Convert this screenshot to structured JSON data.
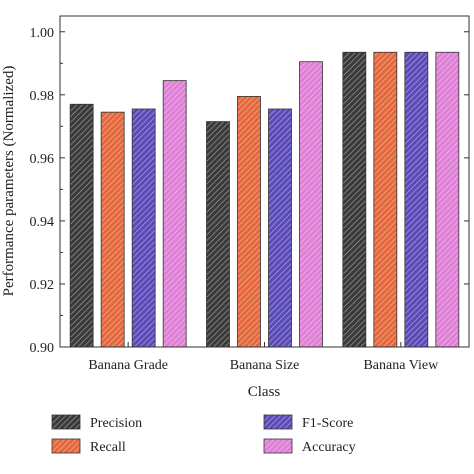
{
  "chart_data": {
    "type": "bar",
    "xlabel": "Class",
    "ylabel": "Performance parameters (Normalized)",
    "categories": [
      "Banana Grade",
      "Banana Size",
      "Banana View"
    ],
    "series": [
      {
        "name": "Precision",
        "values": [
          0.977,
          0.9715,
          0.9935
        ],
        "color": "#3a3a3a"
      },
      {
        "name": "Recall",
        "values": [
          0.9745,
          0.9795,
          0.9935
        ],
        "color": "#e4683c"
      },
      {
        "name": "F1-Score",
        "values": [
          0.9755,
          0.9755,
          0.9935
        ],
        "color": "#5b4bb8"
      },
      {
        "name": "Accuracy",
        "values": [
          0.9845,
          0.9905,
          0.9935
        ],
        "color": "#df7fd6"
      }
    ],
    "ylim": [
      0.9,
      1.005
    ],
    "yticks": [
      0.9,
      0.92,
      0.94,
      0.96,
      0.98,
      1.0
    ],
    "ytick_labels": [
      "0.90",
      "0.92",
      "0.94",
      "0.96",
      "0.98",
      "1.00"
    ],
    "grid": false,
    "legend_position": "bottom"
  }
}
